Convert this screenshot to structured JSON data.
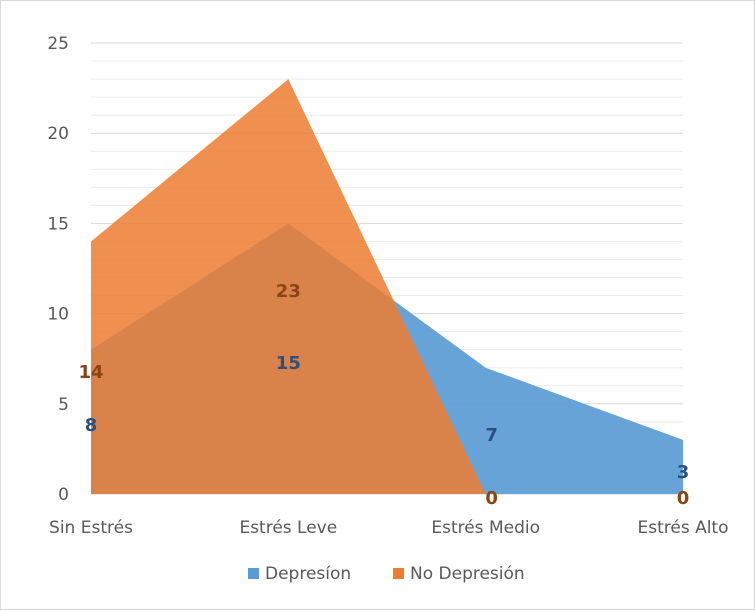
{
  "chart_data": {
    "type": "area",
    "title": "",
    "xlabel": "",
    "ylabel": "",
    "categories": [
      "Sin Estrés",
      "Estrés Leve",
      "Estrés Medio",
      "Estrés Alto"
    ],
    "ylim": [
      0,
      25
    ],
    "yticks": [
      0,
      5,
      10,
      15,
      20,
      25
    ],
    "minor_grid_step": 1,
    "grid": true,
    "legend_position": "bottom",
    "series": [
      {
        "name": "Depresíon",
        "values": [
          8,
          15,
          7,
          3
        ],
        "color": "#5b9bd5",
        "label_color": "#2f4f7a"
      },
      {
        "name": "No Depresión",
        "values": [
          14,
          23,
          0,
          0
        ],
        "color": "#ed7d31",
        "label_color": "#8b4513"
      }
    ]
  }
}
